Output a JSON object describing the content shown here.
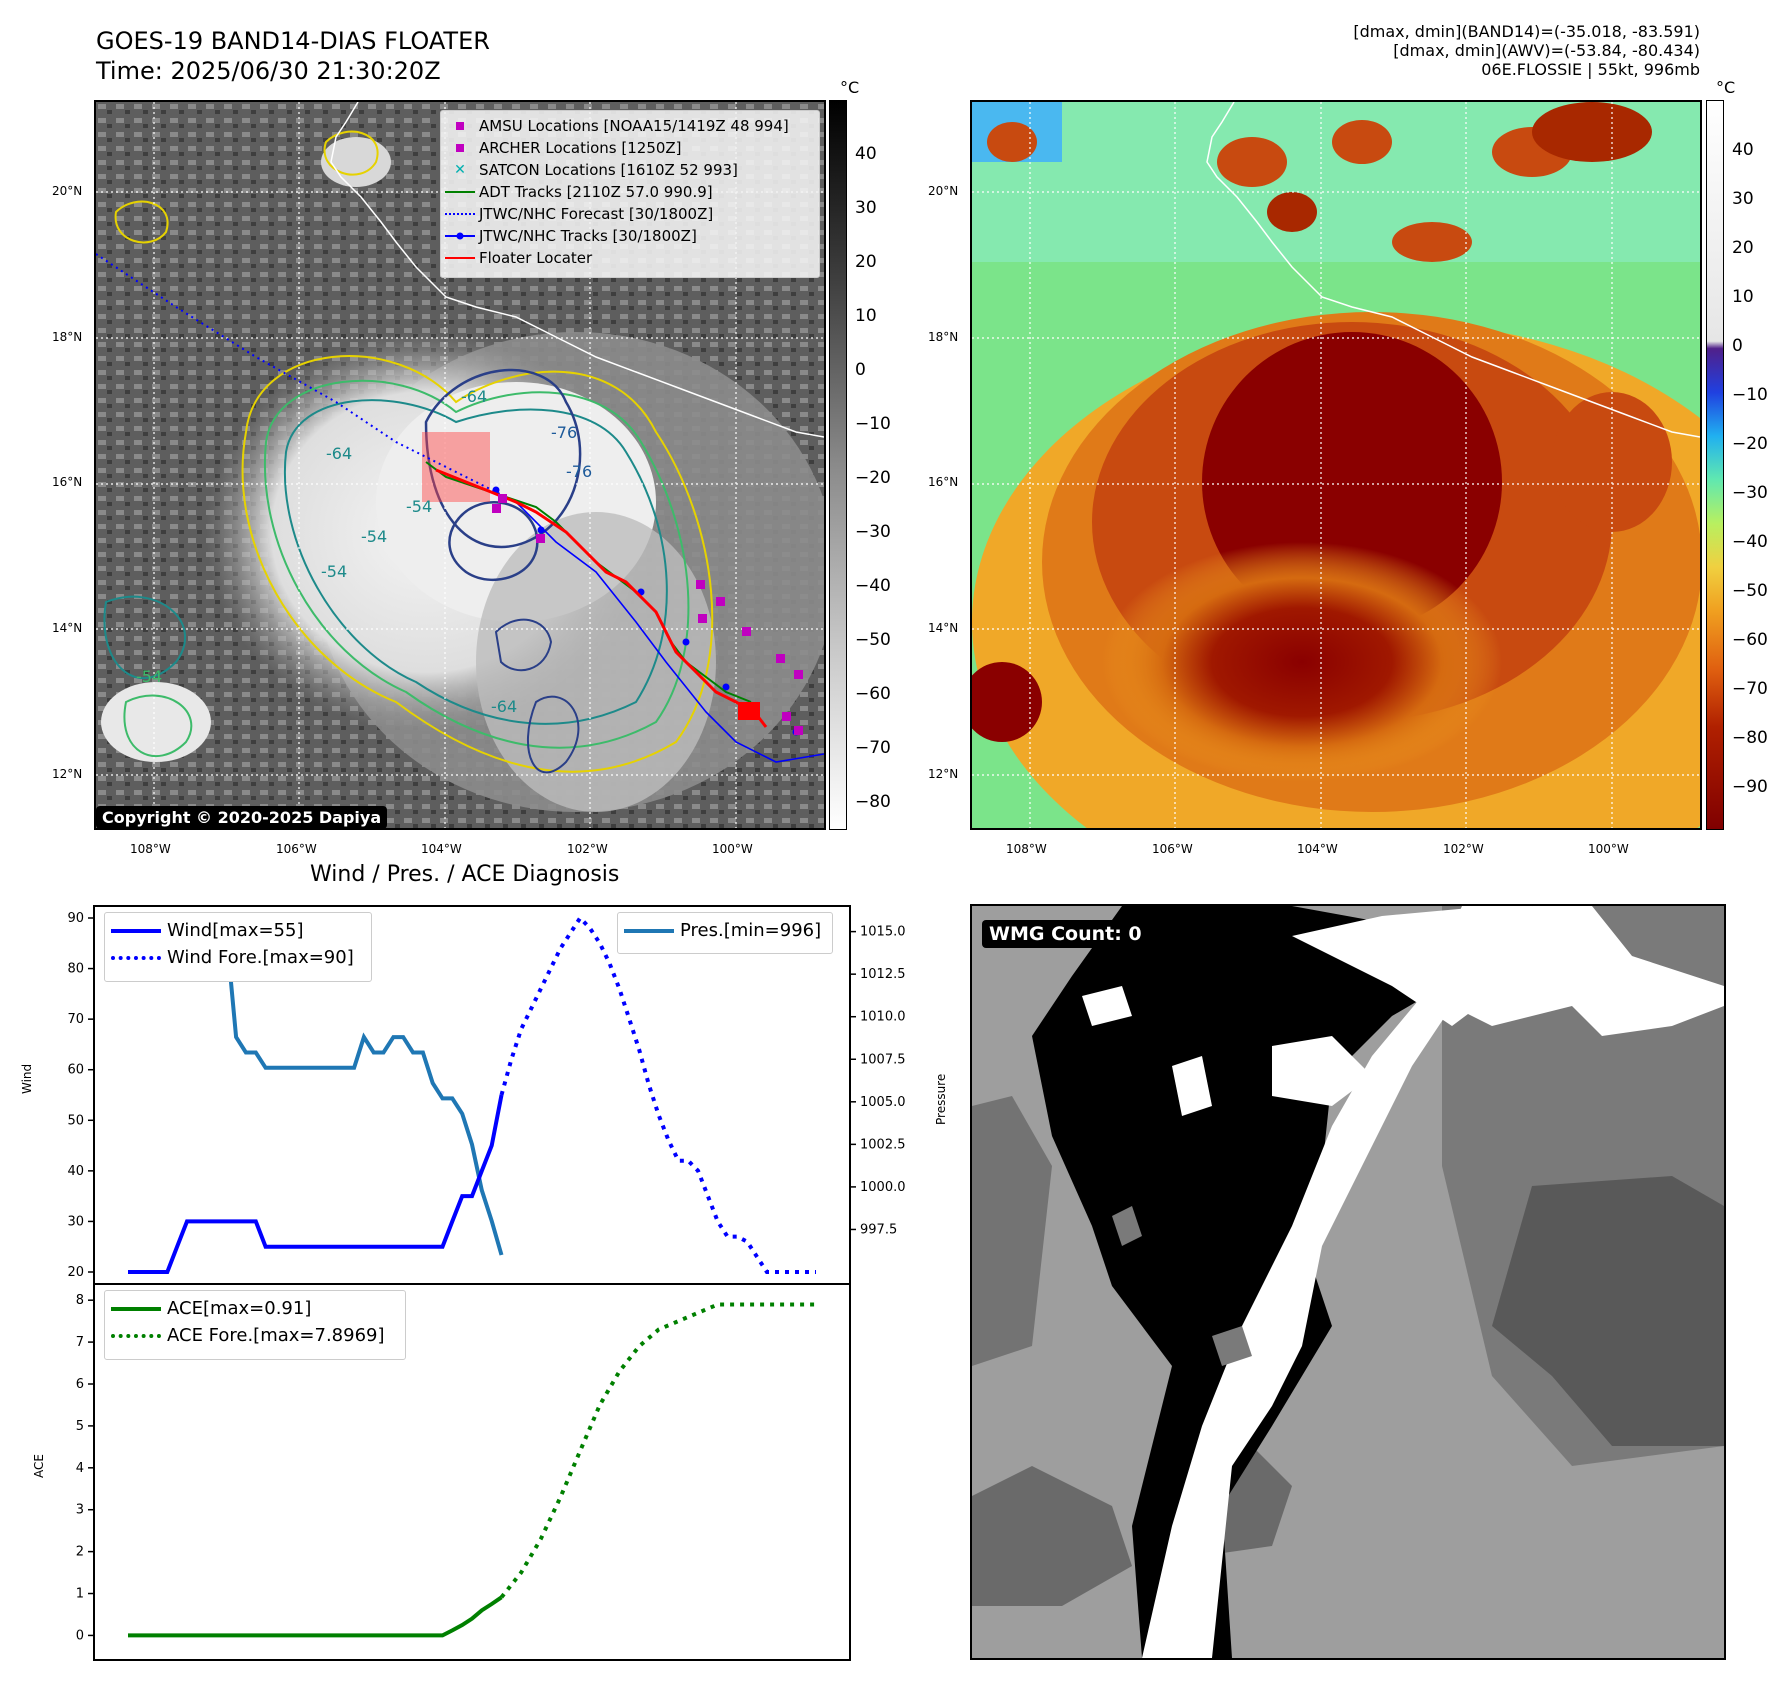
{
  "header": {
    "title_line1": "GOES-19 BAND14-DIAS FLOATER",
    "title_line2": "Time: 2025/06/30 21:30:20Z",
    "info_line1": "[dmax, dmin](BAND14)=(-35.018, -83.591)",
    "info_line2": "[dmax, dmin](AWV)=(-53.84, -80.434)",
    "info_line3": "06E.FLOSSIE | 55kt, 996mb"
  },
  "map": {
    "lat_labels": [
      "20°N",
      "18°N",
      "16°N",
      "14°N",
      "12°N"
    ],
    "lon_labels": [
      "108°W",
      "106°W",
      "104°W",
      "102°W",
      "100°W"
    ],
    "contour_labels": [
      "-76",
      "-76",
      "-64",
      "-64",
      "-54",
      "-54",
      "-54",
      "-64",
      "-54"
    ],
    "copyright": "Copyright © 2020-2025 Dapiya",
    "legend": [
      {
        "label": "AMSU Locations [NOAA15/1419Z 48 994]",
        "marker": "square",
        "color": "#c000c0"
      },
      {
        "label": "ARCHER Locations [1250Z]",
        "marker": "square",
        "color": "#c000c0"
      },
      {
        "label": "SATCON Locations [1610Z 52 993]",
        "marker": "x",
        "color": "#00b0b0"
      },
      {
        "label": "ADT Tracks [2110Z 57.0 990.9]",
        "marker": "line",
        "color": "#008000"
      },
      {
        "label": "JTWC/NHC Forecast [30/1800Z]",
        "marker": "dotted",
        "color": "#0000ff"
      },
      {
        "label": "JTWC/NHC Tracks [30/1800Z]",
        "marker": "dotline",
        "color": "#0000ff"
      },
      {
        "label": "Floater Locater",
        "marker": "line",
        "color": "#ff0000"
      }
    ],
    "cb_unit": "°C",
    "cb1_ticks": [
      "40",
      "30",
      "20",
      "10",
      "0",
      "−10",
      "−20",
      "−30",
      "−40",
      "−50",
      "−60",
      "−70",
      "−80"
    ],
    "cb2_ticks": [
      "40",
      "30",
      "20",
      "10",
      "0",
      "−10",
      "−20",
      "−30",
      "−40",
      "−50",
      "−60",
      "−70",
      "−80",
      "−90"
    ]
  },
  "diagnosis": {
    "title": "Wind / Pres. / ACE Diagnosis",
    "wind_label": "Wind",
    "pressure_label": "Pressure",
    "ace_label": "ACE",
    "legend_wind": "Wind[max=55]",
    "legend_wind_fore": "Wind Fore.[max=90]",
    "legend_pres": "Pres.[min=996]",
    "legend_ace": "ACE[max=0.91]",
    "legend_ace_fore": "ACE Fore.[max=7.8969]"
  },
  "wmg": {
    "label": "WMG Count: 0"
  },
  "chart_data": [
    {
      "type": "line",
      "title": "Wind / Pres. / ACE Diagnosis",
      "ylabel": "Wind",
      "ylim": [
        20,
        90
      ],
      "series": [
        {
          "name": "Wind[max=55]",
          "color": "#0000ff",
          "style": "solid",
          "x": [
            0,
            1,
            2,
            3,
            4,
            5,
            6,
            7,
            8,
            9,
            10,
            11,
            12,
            13,
            14,
            15,
            16,
            17,
            18,
            19,
            20,
            21,
            22,
            23,
            24,
            25,
            26,
            27,
            28,
            29,
            30,
            31,
            32,
            33,
            34,
            35,
            36,
            37,
            38
          ],
          "values": [
            20,
            20,
            20,
            20,
            20,
            25,
            30,
            30,
            30,
            30,
            30,
            30,
            30,
            30,
            25,
            25,
            25,
            25,
            25,
            25,
            25,
            25,
            25,
            25,
            25,
            25,
            25,
            25,
            25,
            25,
            25,
            25,
            25,
            30,
            35,
            35,
            40,
            45,
            55
          ]
        },
        {
          "name": "Wind Fore.[max=90]",
          "color": "#0000ff",
          "style": "dotted",
          "x": [
            38,
            39,
            40,
            41,
            42,
            43,
            44,
            45,
            46,
            47,
            48,
            49,
            50,
            51,
            52,
            53,
            54,
            55,
            56,
            57,
            58,
            59,
            60,
            61,
            62,
            63,
            64,
            65,
            66,
            67,
            68,
            69,
            70
          ],
          "values": [
            55,
            62,
            68,
            72,
            76,
            80,
            84,
            87,
            90,
            88,
            85,
            81,
            76,
            70,
            64,
            57,
            51,
            46,
            42,
            42,
            40,
            35,
            30,
            27,
            27,
            26,
            23,
            20,
            20,
            20,
            20,
            20,
            20
          ]
        }
      ]
    },
    {
      "type": "line",
      "ylabel": "Pressure",
      "ylim": [
        995,
        1015.8
      ],
      "series": [
        {
          "name": "Pres.[min=996]",
          "color": "#1f77b4",
          "style": "solid",
          "x": [
            0,
            1,
            2,
            3,
            4,
            5,
            6,
            7,
            8,
            9,
            10,
            11,
            12,
            13,
            14,
            15,
            16,
            17,
            18,
            19,
            20,
            21,
            22,
            23,
            24,
            25,
            26,
            27,
            28,
            29,
            30,
            31,
            32,
            33,
            34,
            35,
            36,
            37,
            38
          ],
          "values": [
            1015,
            1015,
            1015,
            1015,
            1015,
            1015,
            1015,
            1015,
            1015,
            1015,
            1015,
            1008.8,
            1007.9,
            1007.9,
            1007,
            1007,
            1007,
            1007,
            1007,
            1007,
            1007,
            1007,
            1007,
            1007,
            1008.8,
            1007.9,
            1007.9,
            1008.8,
            1008.8,
            1007.9,
            1007.9,
            1006.1,
            1005.2,
            1005.2,
            1004.3,
            1002.5,
            999.8,
            998,
            996
          ]
        }
      ]
    },
    {
      "type": "line",
      "ylabel": "ACE",
      "ylim": [
        -0.3,
        8.1
      ],
      "series": [
        {
          "name": "ACE[max=0.91]",
          "color": "#008000",
          "style": "solid",
          "x": [
            0,
            2,
            4,
            6,
            8,
            10,
            12,
            14,
            16,
            18,
            20,
            22,
            24,
            26,
            28,
            30,
            32,
            33,
            34,
            35,
            36,
            37,
            38
          ],
          "values": [
            0,
            0,
            0,
            0,
            0,
            0,
            0,
            0,
            0,
            0,
            0,
            0,
            0,
            0,
            0,
            0,
            0,
            0.12,
            0.25,
            0.4,
            0.6,
            0.75,
            0.91
          ]
        },
        {
          "name": "ACE Fore.[max=7.8969]",
          "color": "#008000",
          "style": "dotted",
          "x": [
            38,
            40,
            42,
            44,
            46,
            48,
            50,
            52,
            54,
            56,
            58,
            60,
            62,
            64,
            66,
            68,
            70
          ],
          "values": [
            0.91,
            1.5,
            2.3,
            3.3,
            4.4,
            5.5,
            6.3,
            6.9,
            7.3,
            7.5,
            7.7,
            7.8969,
            7.8969,
            7.8969,
            7.8969,
            7.8969,
            7.8969
          ]
        }
      ]
    }
  ]
}
